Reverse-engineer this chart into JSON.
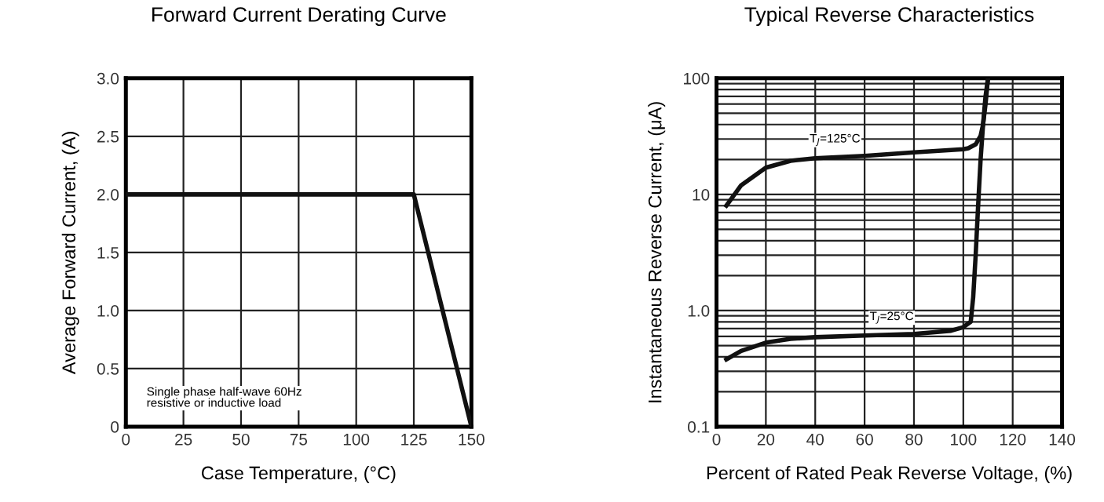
{
  "chart_data": [
    {
      "type": "line",
      "title": "Forward Current Derating Curve",
      "xlabel": "Case Temperature, (°C)",
      "ylabel": "Average Forward Current, (A)",
      "xlim": [
        0,
        150
      ],
      "ylim": [
        0,
        3
      ],
      "xticks": [
        0,
        25,
        50,
        75,
        100,
        125,
        150
      ],
      "yticks": [
        {
          "value": 0,
          "label": "0"
        },
        {
          "value": 0.5,
          "label": "0.5"
        },
        {
          "value": 1,
          "label": "1.0"
        },
        {
          "value": 1.5,
          "label": "1.5"
        },
        {
          "value": 2,
          "label": "2.0"
        },
        {
          "value": 2.5,
          "label": "2.5"
        },
        {
          "value": 3,
          "label": "3.0"
        }
      ],
      "grid": true,
      "legend": false,
      "marker": "none",
      "line_style": "solid",
      "series": [
        {
          "color": "#111111",
          "x": [
            0,
            125,
            150
          ],
          "values": [
            2,
            2,
            0
          ]
        }
      ],
      "annotations": [
        "Single phase half-wave 60Hz\nresistive or inductive load"
      ]
    },
    {
      "type": "line",
      "title": "Typical Reverse Characteristics",
      "xlabel": "Percent of Rated Peak Reverse Voltage, (%)",
      "ylabel": "Instantaneous Reverse Current, (μA)",
      "log": "y",
      "xlim": [
        0,
        140
      ],
      "ylim": [
        0.1,
        100
      ],
      "xticks": [
        0,
        20,
        40,
        60,
        80,
        100,
        120,
        140
      ],
      "yticks": [
        {
          "value": 0.1,
          "label": "0.1"
        },
        {
          "value": 0.2,
          "label": null
        },
        {
          "value": 0.3,
          "label": null
        },
        {
          "value": 0.4,
          "label": null
        },
        {
          "value": 0.5,
          "label": null
        },
        {
          "value": 0.6,
          "label": null
        },
        {
          "value": 0.7,
          "label": null
        },
        {
          "value": 0.8,
          "label": null
        },
        {
          "value": 0.9,
          "label": null
        },
        {
          "value": 1,
          "label": "1.0"
        },
        {
          "value": 2,
          "label": null
        },
        {
          "value": 3,
          "label": null
        },
        {
          "value": 4,
          "label": null
        },
        {
          "value": 5,
          "label": null
        },
        {
          "value": 6,
          "label": null
        },
        {
          "value": 7,
          "label": null
        },
        {
          "value": 8,
          "label": null
        },
        {
          "value": 9,
          "label": null
        },
        {
          "value": 10,
          "label": "10"
        },
        {
          "value": 20,
          "label": null
        },
        {
          "value": 30,
          "label": null
        },
        {
          "value": 40,
          "label": null
        },
        {
          "value": 50,
          "label": null
        },
        {
          "value": 60,
          "label": null
        },
        {
          "value": 70,
          "label": null
        },
        {
          "value": 80,
          "label": null
        },
        {
          "value": 90,
          "label": null
        },
        {
          "value": 100,
          "label": "100"
        }
      ],
      "grid": true,
      "legend": false,
      "marker": "none",
      "line_style": "solid",
      "series": [
        {
          "color": "#111111",
          "x": [
            4,
            10,
            20,
            30,
            40,
            60,
            80,
            100,
            102,
            105,
            107,
            108,
            109,
            110
          ],
          "values": [
            8,
            12,
            17,
            19.5,
            20.5,
            21.5,
            23,
            24.5,
            25,
            27,
            32,
            40,
            60,
            100
          ]
        },
        {
          "color": "#111111",
          "x": [
            4,
            10,
            20,
            30,
            40,
            60,
            80,
            95,
            100,
            103,
            104,
            105,
            106,
            107,
            108,
            109,
            110
          ],
          "values": [
            0.38,
            0.45,
            0.53,
            0.57,
            0.59,
            0.61,
            0.63,
            0.67,
            0.72,
            0.8,
            1.3,
            3,
            8,
            20,
            40,
            70,
            100
          ]
        }
      ],
      "annotations": [
        {
          "text": "T$_{J}$=125°C",
          "x": 48,
          "y": 21
        },
        {
          "text": "T$_{J}$=25°C",
          "x": 71,
          "y": 0.62
        }
      ]
    }
  ]
}
